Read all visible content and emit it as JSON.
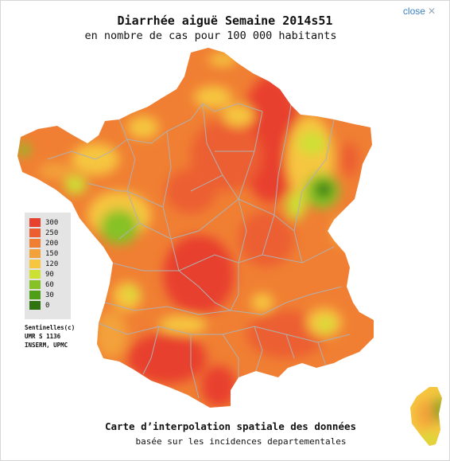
{
  "header": {
    "close_label": "close",
    "close_icon": "close-icon",
    "title": "Diarrhée aiguë Semaine 2014s51",
    "subtitle": "en nombre de cas pour 100 000 habitants"
  },
  "legend": {
    "items": [
      {
        "label": "300",
        "color": "#e8412e"
      },
      {
        "label": "250",
        "color": "#ec5e30"
      },
      {
        "label": "200",
        "color": "#f07f33"
      },
      {
        "label": "150",
        "color": "#f3a23a"
      },
      {
        "label": "120",
        "color": "#f6c640"
      },
      {
        "label": "90",
        "color": "#cde034"
      },
      {
        "label": "60",
        "color": "#86c225"
      },
      {
        "label": "30",
        "color": "#4f9e18"
      },
      {
        "label": "0",
        "color": "#2f7410"
      }
    ]
  },
  "credits": [
    "Sentinelles(c)",
    "UMR S 1136",
    "INSERM, UPMC"
  ],
  "footer": {
    "line1": "Carte d’interpolation spatiale des données",
    "line2": "basée sur les incidences departementales"
  },
  "colors": {
    "link": "#3a7fc4",
    "border_lines": "#b0b0b0",
    "legend_bg": "#e4e4e4"
  }
}
